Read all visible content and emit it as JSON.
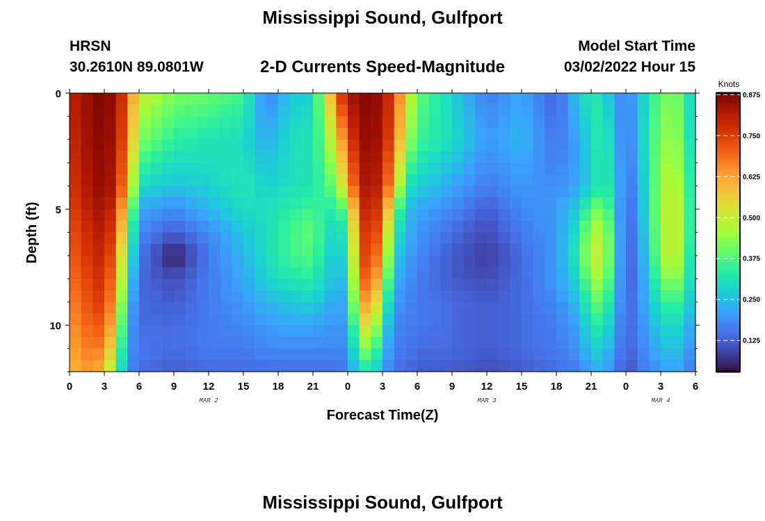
{
  "header": {
    "title": "Mississippi Sound, Gulfport",
    "station": "HRSN",
    "coordinates": "30.2610N  89.0801W",
    "subtitle": "2-D Currents Speed-Magnitude",
    "model_start_label": "Model Start Time",
    "model_start_value": "03/02/2022 Hour 15"
  },
  "footer": {
    "title": "Mississippi Sound, Gulfport"
  },
  "chart_data": {
    "type": "heatmap",
    "title": "2-D Currents Speed-Magnitude",
    "xlabel": "Forecast Time(Z)",
    "ylabel": "Depth (ft)",
    "x_tick_labels": [
      "0",
      "3",
      "6",
      "9",
      "12",
      "15",
      "18",
      "21",
      "0",
      "3",
      "6",
      "9",
      "12",
      "15",
      "18",
      "21",
      "0",
      "3",
      "6"
    ],
    "x_range_hours": [
      0,
      54
    ],
    "date_labels": [
      {
        "text": "MAR 2",
        "hour": 12
      },
      {
        "text": "MAR 3",
        "hour": 36
      },
      {
        "text": "MAR 4",
        "hour": 51
      }
    ],
    "y_range_ft": [
      0,
      12
    ],
    "y_ticks": [
      0,
      5,
      10
    ],
    "y_reversed": true,
    "colorbar": {
      "label": "Knots",
      "range": [
        0.03,
        0.88
      ],
      "ticks": [
        "0.875",
        "0.750",
        "0.625",
        "0.500",
        "0.375",
        "0.250",
        "0.125"
      ],
      "colors": [
        "#30123b",
        "#4145ab",
        "#4675ed",
        "#39a2fc",
        "#1bcfd4",
        "#24eca6",
        "#61fc6c",
        "#a4fc3b",
        "#d1e834",
        "#f3c63a",
        "#fe9b2d",
        "#f36315",
        "#d93806",
        "#b11901",
        "#7a0403"
      ]
    },
    "grid": "off",
    "units": "knots",
    "time_hours": [
      0,
      1,
      2,
      3,
      4,
      5,
      6,
      9,
      12,
      15,
      17,
      19,
      21,
      22,
      23,
      24,
      25,
      26,
      27,
      28,
      29,
      30,
      33,
      36,
      39,
      42,
      44,
      45,
      46,
      47,
      48,
      50,
      51,
      52,
      53,
      54
    ],
    "depth_ft": [
      0,
      2,
      4,
      5,
      6,
      7,
      8,
      9,
      10,
      11,
      12
    ],
    "speed_knots": [
      [
        0.8,
        0.83,
        0.86,
        0.88,
        0.84,
        0.72,
        0.5,
        0.42,
        0.4,
        0.36,
        0.16,
        0.26,
        0.28,
        0.48,
        0.7,
        0.83,
        0.86,
        0.87,
        0.84,
        0.74,
        0.55,
        0.4,
        0.28,
        0.16,
        0.22,
        0.12,
        0.28,
        0.34,
        0.3,
        0.22,
        0.16,
        0.32,
        0.4,
        0.42,
        0.38,
        0.22
      ],
      [
        0.78,
        0.82,
        0.85,
        0.87,
        0.82,
        0.68,
        0.42,
        0.34,
        0.32,
        0.3,
        0.22,
        0.3,
        0.32,
        0.4,
        0.55,
        0.72,
        0.84,
        0.86,
        0.82,
        0.7,
        0.48,
        0.36,
        0.3,
        0.2,
        0.24,
        0.15,
        0.22,
        0.3,
        0.34,
        0.26,
        0.14,
        0.34,
        0.42,
        0.45,
        0.4,
        0.24
      ],
      [
        0.76,
        0.8,
        0.84,
        0.86,
        0.8,
        0.62,
        0.3,
        0.26,
        0.28,
        0.32,
        0.28,
        0.3,
        0.32,
        0.36,
        0.42,
        0.6,
        0.8,
        0.84,
        0.78,
        0.6,
        0.32,
        0.28,
        0.22,
        0.16,
        0.2,
        0.18,
        0.22,
        0.28,
        0.34,
        0.3,
        0.12,
        0.32,
        0.45,
        0.48,
        0.44,
        0.24
      ],
      [
        0.74,
        0.78,
        0.82,
        0.84,
        0.76,
        0.52,
        0.22,
        0.18,
        0.24,
        0.3,
        0.3,
        0.34,
        0.36,
        0.34,
        0.32,
        0.42,
        0.76,
        0.82,
        0.72,
        0.44,
        0.26,
        0.22,
        0.18,
        0.12,
        0.18,
        0.2,
        0.28,
        0.4,
        0.42,
        0.3,
        0.1,
        0.32,
        0.46,
        0.5,
        0.46,
        0.24
      ],
      [
        0.72,
        0.76,
        0.8,
        0.82,
        0.72,
        0.44,
        0.18,
        0.12,
        0.18,
        0.26,
        0.3,
        0.36,
        0.4,
        0.32,
        0.28,
        0.34,
        0.72,
        0.8,
        0.66,
        0.34,
        0.24,
        0.2,
        0.14,
        0.1,
        0.16,
        0.2,
        0.32,
        0.46,
        0.48,
        0.32,
        0.1,
        0.3,
        0.46,
        0.5,
        0.46,
        0.24
      ],
      [
        0.7,
        0.74,
        0.78,
        0.8,
        0.68,
        0.38,
        0.16,
        0.04,
        0.16,
        0.24,
        0.3,
        0.36,
        0.38,
        0.3,
        0.26,
        0.3,
        0.7,
        0.78,
        0.6,
        0.28,
        0.22,
        0.18,
        0.12,
        0.08,
        0.14,
        0.2,
        0.34,
        0.5,
        0.5,
        0.32,
        0.1,
        0.28,
        0.46,
        0.5,
        0.44,
        0.22
      ],
      [
        0.68,
        0.72,
        0.76,
        0.78,
        0.64,
        0.32,
        0.14,
        0.1,
        0.16,
        0.22,
        0.28,
        0.32,
        0.34,
        0.28,
        0.24,
        0.26,
        0.66,
        0.74,
        0.52,
        0.24,
        0.2,
        0.16,
        0.12,
        0.1,
        0.14,
        0.2,
        0.3,
        0.44,
        0.46,
        0.3,
        0.1,
        0.26,
        0.4,
        0.44,
        0.4,
        0.22
      ],
      [
        0.66,
        0.7,
        0.74,
        0.76,
        0.6,
        0.26,
        0.14,
        0.12,
        0.16,
        0.2,
        0.24,
        0.26,
        0.28,
        0.24,
        0.22,
        0.22,
        0.6,
        0.66,
        0.42,
        0.2,
        0.18,
        0.16,
        0.14,
        0.12,
        0.14,
        0.18,
        0.26,
        0.38,
        0.4,
        0.26,
        0.12,
        0.24,
        0.34,
        0.36,
        0.34,
        0.2
      ],
      [
        0.64,
        0.68,
        0.7,
        0.72,
        0.55,
        0.22,
        0.14,
        0.14,
        0.16,
        0.18,
        0.2,
        0.22,
        0.22,
        0.2,
        0.2,
        0.2,
        0.5,
        0.56,
        0.32,
        0.18,
        0.16,
        0.16,
        0.14,
        0.12,
        0.14,
        0.16,
        0.22,
        0.32,
        0.34,
        0.22,
        0.12,
        0.22,
        0.28,
        0.3,
        0.28,
        0.18
      ],
      [
        0.62,
        0.66,
        0.68,
        0.66,
        0.48,
        0.2,
        0.16,
        0.14,
        0.16,
        0.16,
        0.18,
        0.18,
        0.18,
        0.18,
        0.18,
        0.18,
        0.4,
        0.44,
        0.26,
        0.16,
        0.16,
        0.14,
        0.14,
        0.12,
        0.14,
        0.16,
        0.2,
        0.28,
        0.28,
        0.2,
        0.12,
        0.2,
        0.24,
        0.26,
        0.24,
        0.16
      ],
      [
        0.6,
        0.62,
        0.64,
        0.58,
        0.4,
        0.18,
        0.14,
        0.12,
        0.14,
        0.14,
        0.14,
        0.14,
        0.14,
        0.14,
        0.14,
        0.16,
        0.3,
        0.32,
        0.22,
        0.14,
        0.14,
        0.12,
        0.12,
        0.1,
        0.12,
        0.14,
        0.16,
        0.22,
        0.22,
        0.18,
        0.1,
        0.18,
        0.2,
        0.22,
        0.2,
        0.14
      ]
    ]
  }
}
